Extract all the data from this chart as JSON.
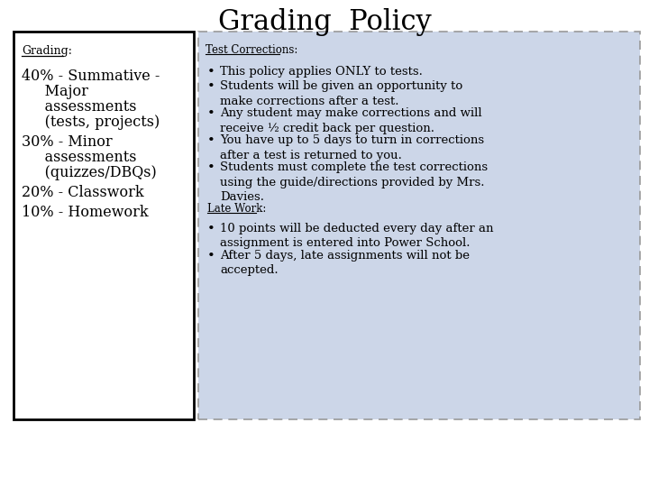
{
  "title": "Grading  Policy",
  "title_fontsize": 22,
  "bg_color": "#ffffff",
  "left_box_bg": "#ffffff",
  "right_box_bg": "#ccd6e8",
  "left_header": "Grading:",
  "left_items": [
    {
      "line1": "40% - Summative -",
      "line2": "     Major",
      "line3": "     assessments",
      "line4": "     (tests, projects)"
    },
    {
      "line1": "30% - Minor",
      "line2": "     assessments",
      "line3": "     (quizzes/DBQs)"
    },
    {
      "line1": "20% - Classwork"
    },
    {
      "line1": "10% - Homework"
    }
  ],
  "right_header": "Test Corrections:",
  "right_bullets": [
    "This policy applies ONLY to tests.",
    "Students will be given an opportunity to\nmake corrections after a test.",
    "Any student may make corrections and will\nreceive ½ credit back per question.",
    "You have up to 5 days to turn in corrections\nafter a test is returned to you.",
    "Students must complete the test corrections\nusing the guide/directions provided by Mrs.\nDavies."
  ],
  "late_work_header": "Late Work:",
  "late_work_bullets": [
    "10 points will be deducted every day after an\nassignment is entered into Power School.",
    "After 5 days, late assignments will not be\naccepted."
  ],
  "font_size_body": 9.5,
  "font_size_header": 8.5,
  "font_size_left_body": 11.5
}
